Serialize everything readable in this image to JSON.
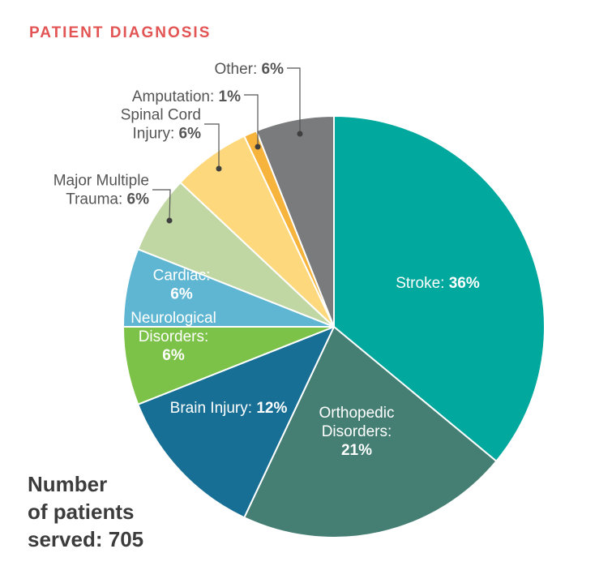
{
  "title": "PATIENT DIAGNOSIS",
  "total": {
    "line1": "Number",
    "line2": "of patients",
    "line3_prefix": "served: ",
    "value": "705"
  },
  "chart_data": {
    "type": "pie",
    "start_angle_deg": 0,
    "direction": "clockwise",
    "slices": [
      {
        "label": [
          "Stroke:"
        ],
        "value": 36,
        "pct": "36%",
        "color": "#00a89d",
        "label_color": "#ffffff"
      },
      {
        "label": [
          "Orthopedic",
          "Disorders:"
        ],
        "value": 21,
        "pct": "21%",
        "color": "#457f73",
        "label_color": "#ffffff"
      },
      {
        "label": [
          "Brain Injury:"
        ],
        "value": 12,
        "pct": "12%",
        "color": "#176f95",
        "label_color": "#ffffff"
      },
      {
        "label": [
          "Neurological",
          "Disorders:"
        ],
        "value": 6,
        "pct": "6%",
        "color": "#7cc248",
        "label_color": "#ffffff"
      },
      {
        "label": [
          "Cardiac:"
        ],
        "value": 6,
        "pct": "6%",
        "color": "#5fb6d2",
        "label_color": "#ffffff"
      },
      {
        "label": [
          "Major Multiple",
          "Trauma:"
        ],
        "value": 6,
        "pct": "6%",
        "color": "#c1d7a3",
        "label_color": "#555555"
      },
      {
        "label": [
          "Spinal Cord",
          "Injury:"
        ],
        "value": 6,
        "pct": "6%",
        "color": "#fed87c",
        "label_color": "#555555"
      },
      {
        "label": [
          "Amputation:"
        ],
        "value": 1,
        "pct": "1%",
        "color": "#f6b43d",
        "label_color": "#555555"
      },
      {
        "label": [
          "Other:"
        ],
        "value": 6,
        "pct": "6%",
        "color": "#7a7b7d",
        "label_color": "#555555"
      }
    ]
  }
}
